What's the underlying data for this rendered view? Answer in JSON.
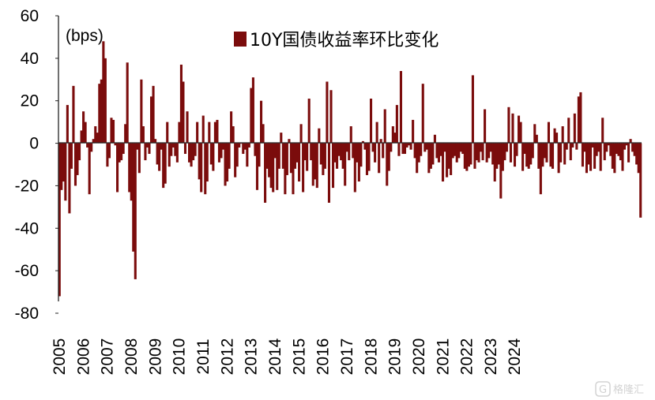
{
  "chart_data": {
    "type": "bar",
    "unit_label": "(bps)",
    "series": [
      {
        "name": "10Y国债收益率环比变化",
        "color": "#7b0c0c",
        "start": "2005-01",
        "frequency": "monthly",
        "values": [
          -72,
          -22,
          -18,
          -27,
          18,
          -33,
          -12,
          27,
          -20,
          -15,
          -8,
          6,
          15,
          10,
          -2,
          -24,
          -4,
          2,
          8,
          5,
          28,
          30,
          48,
          40,
          -11,
          -7,
          12,
          11,
          -1,
          -23,
          -9,
          -8,
          -5,
          9,
          38,
          -23,
          -27,
          -51,
          -64,
          -3,
          -14,
          30,
          8,
          -8,
          -2,
          -5,
          22,
          27,
          2,
          -10,
          -13,
          -3,
          -21,
          -19,
          10,
          -11,
          -6,
          -2,
          -6,
          -9,
          10,
          37,
          29,
          -5,
          15,
          -9,
          -11,
          -8,
          -6,
          10,
          -17,
          -23,
          13,
          -24,
          -18,
          10,
          -10,
          -13,
          10,
          11,
          -9,
          -7,
          -3,
          -20,
          -18,
          -12,
          15,
          8,
          -16,
          -11,
          -2,
          0,
          -5,
          -3,
          -11,
          -2,
          26,
          31,
          -6,
          -22,
          -11,
          20,
          9,
          -28,
          -12,
          -16,
          -21,
          -23,
          -7,
          -22,
          -12,
          5,
          -12,
          -24,
          -15,
          2,
          -14,
          -24,
          -12,
          -9,
          -18,
          9,
          -23,
          -8,
          -13,
          21,
          -8,
          -20,
          -17,
          -21,
          7,
          -10,
          -15,
          -12,
          29,
          -28,
          25,
          -21,
          -9,
          -12,
          -6,
          -8,
          -12,
          -20,
          -4,
          -8,
          8,
          -7,
          -23,
          -9,
          -18,
          -11,
          1,
          -3,
          -15,
          -13,
          21,
          -4,
          -9,
          10,
          -14,
          2,
          -7,
          16,
          -20,
          -13,
          -4,
          8,
          5,
          18,
          -6,
          34,
          -5,
          -5,
          -2,
          -1,
          -3,
          11,
          -7,
          -14,
          -9,
          -6,
          28,
          -4,
          -3,
          -14,
          -12,
          -10,
          4,
          -7,
          -9,
          -6,
          -18,
          -4,
          -16,
          -12,
          -15,
          -7,
          -6,
          -9,
          -7,
          -4,
          -5,
          -12,
          -13,
          -11,
          -10,
          32,
          -12,
          -8,
          -9,
          -4,
          -8,
          16,
          -9,
          -7,
          -4,
          -10,
          -18,
          -12,
          -10,
          -26,
          -13,
          -8,
          -4,
          17,
          -9,
          14,
          -11,
          -6,
          13,
          10,
          -13,
          -5,
          -11,
          -12,
          -10,
          -7,
          9,
          4,
          -12,
          -24,
          -11,
          -7,
          -9,
          10,
          -11,
          -12,
          7,
          5,
          -14,
          -9,
          8,
          -10,
          -3,
          12,
          -8,
          -2,
          14,
          -3,
          22,
          24,
          -11,
          -4,
          -14,
          -10,
          -13,
          -2,
          -12,
          -6,
          -4,
          -13,
          12,
          -8,
          -4,
          -1,
          -6,
          -12,
          -14,
          -5,
          -6,
          -8,
          -13,
          -3,
          -1,
          -9,
          2,
          -4,
          -6,
          -10,
          -14,
          -35
        ]
      }
    ],
    "x_tick_labels": [
      "2005",
      "2006",
      "2007",
      "2008",
      "2009",
      "2010",
      "2011",
      "2012",
      "2013",
      "2014",
      "2015",
      "2016",
      "2017",
      "2018",
      "2019",
      "2020",
      "2021",
      "2022",
      "2023",
      "2024"
    ],
    "y_ticks": [
      60,
      40,
      20,
      0,
      -20,
      -40,
      -60,
      -80
    ],
    "ylim": [
      -80,
      60
    ],
    "grid": false,
    "legend_position": "top-center"
  },
  "watermark": "格隆汇"
}
